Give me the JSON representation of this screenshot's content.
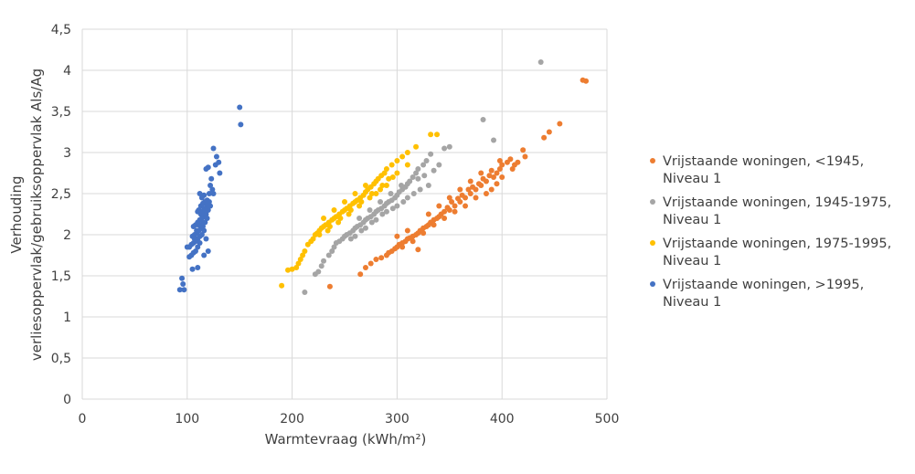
{
  "chart_data": {
    "type": "scatter",
    "title": "",
    "xlabel": "Warmtevraag (kWh/m²)",
    "ylabel_line1": "Verhouding",
    "ylabel_line2": "verliesoppervlak/gebruiksoppervlak Als/Ag",
    "xlim": [
      0,
      500
    ],
    "ylim": [
      0,
      4.5
    ],
    "x_ticks": [
      "0",
      "100",
      "200",
      "300",
      "400",
      "500"
    ],
    "y_ticks": [
      "0",
      "0,5",
      "1",
      "1,5",
      "2",
      "2,5",
      "3",
      "3,5",
      "4",
      "4,5"
    ],
    "grid": "major, both axes",
    "legend_position": "right",
    "series": [
      {
        "name_line1": "Vrijstaande woningen, <1945,",
        "name_line2": "Niveau 1",
        "color": "#ED7D31",
        "points": [
          [
            480,
            3.87
          ],
          [
            477,
            3.88
          ],
          [
            455,
            3.35
          ],
          [
            445,
            3.25
          ],
          [
            440,
            3.18
          ],
          [
            420,
            3.03
          ],
          [
            422,
            2.95
          ],
          [
            415,
            2.88
          ],
          [
            412,
            2.85
          ],
          [
            408,
            2.92
          ],
          [
            405,
            2.88
          ],
          [
            400,
            2.85
          ],
          [
            398,
            2.8
          ],
          [
            395,
            2.75
          ],
          [
            392,
            2.7
          ],
          [
            390,
            2.78
          ],
          [
            388,
            2.72
          ],
          [
            385,
            2.65
          ],
          [
            382,
            2.68
          ],
          [
            380,
            2.6
          ],
          [
            378,
            2.62
          ],
          [
            375,
            2.55
          ],
          [
            372,
            2.58
          ],
          [
            370,
            2.5
          ],
          [
            368,
            2.55
          ],
          [
            365,
            2.45
          ],
          [
            362,
            2.48
          ],
          [
            360,
            2.4
          ],
          [
            358,
            2.44
          ],
          [
            355,
            2.35
          ],
          [
            352,
            2.4
          ],
          [
            350,
            2.3
          ],
          [
            348,
            2.33
          ],
          [
            345,
            2.28
          ],
          [
            342,
            2.25
          ],
          [
            340,
            2.22
          ],
          [
            338,
            2.2
          ],
          [
            335,
            2.18
          ],
          [
            332,
            2.15
          ],
          [
            330,
            2.12
          ],
          [
            328,
            2.1
          ],
          [
            325,
            2.08
          ],
          [
            322,
            2.05
          ],
          [
            320,
            2.02
          ],
          [
            318,
            2.0
          ],
          [
            315,
            1.98
          ],
          [
            312,
            1.96
          ],
          [
            310,
            1.95
          ],
          [
            308,
            1.92
          ],
          [
            305,
            1.9
          ],
          [
            302,
            1.88
          ],
          [
            300,
            1.85
          ],
          [
            298,
            1.83
          ],
          [
            295,
            1.8
          ],
          [
            292,
            1.78
          ],
          [
            290,
            1.75
          ],
          [
            285,
            1.72
          ],
          [
            280,
            1.7
          ],
          [
            275,
            1.65
          ],
          [
            270,
            1.6
          ],
          [
            265,
            1.52
          ],
          [
            320,
            1.82
          ],
          [
            236,
            1.37
          ],
          [
            390,
            2.55
          ],
          [
            395,
            2.62
          ],
          [
            400,
            2.7
          ],
          [
            385,
            2.5
          ],
          [
            375,
            2.45
          ],
          [
            365,
            2.35
          ],
          [
            355,
            2.28
          ],
          [
            345,
            2.2
          ],
          [
            335,
            2.12
          ],
          [
            325,
            2.02
          ],
          [
            315,
            1.92
          ],
          [
            305,
            1.85
          ],
          [
            410,
            2.8
          ],
          [
            370,
            2.65
          ],
          [
            360,
            2.55
          ],
          [
            350,
            2.45
          ],
          [
            340,
            2.35
          ],
          [
            330,
            2.25
          ],
          [
            380,
            2.75
          ],
          [
            398,
            2.9
          ],
          [
            310,
            2.05
          ],
          [
            300,
            1.98
          ]
        ]
      },
      {
        "name_line1": "Vrijstaande woningen, 1945-1975,",
        "name_line2": "Niveau 1",
        "color": "#A5A5A5",
        "points": [
          [
            437,
            4.1
          ],
          [
            382,
            3.4
          ],
          [
            392,
            3.15
          ],
          [
            350,
            3.07
          ],
          [
            345,
            3.05
          ],
          [
            332,
            2.98
          ],
          [
            328,
            2.9
          ],
          [
            325,
            2.85
          ],
          [
            320,
            2.8
          ],
          [
            318,
            2.75
          ],
          [
            315,
            2.7
          ],
          [
            312,
            2.65
          ],
          [
            310,
            2.62
          ],
          [
            308,
            2.58
          ],
          [
            305,
            2.55
          ],
          [
            302,
            2.52
          ],
          [
            300,
            2.48
          ],
          [
            298,
            2.45
          ],
          [
            295,
            2.42
          ],
          [
            292,
            2.4
          ],
          [
            290,
            2.38
          ],
          [
            288,
            2.35
          ],
          [
            285,
            2.32
          ],
          [
            282,
            2.3
          ],
          [
            280,
            2.28
          ],
          [
            278,
            2.25
          ],
          [
            275,
            2.22
          ],
          [
            272,
            2.2
          ],
          [
            270,
            2.18
          ],
          [
            268,
            2.15
          ],
          [
            265,
            2.12
          ],
          [
            262,
            2.1
          ],
          [
            260,
            2.08
          ],
          [
            258,
            2.05
          ],
          [
            255,
            2.02
          ],
          [
            252,
            2.0
          ],
          [
            250,
            1.98
          ],
          [
            248,
            1.95
          ],
          [
            245,
            1.92
          ],
          [
            242,
            1.9
          ],
          [
            240,
            1.85
          ],
          [
            238,
            1.8
          ],
          [
            235,
            1.75
          ],
          [
            230,
            1.68
          ],
          [
            228,
            1.62
          ],
          [
            225,
            1.55
          ],
          [
            222,
            1.52
          ],
          [
            212,
            1.3
          ],
          [
            330,
            2.6
          ],
          [
            322,
            2.55
          ],
          [
            316,
            2.5
          ],
          [
            306,
            2.4
          ],
          [
            296,
            2.32
          ],
          [
            286,
            2.25
          ],
          [
            276,
            2.15
          ],
          [
            266,
            2.05
          ],
          [
            256,
            1.95
          ],
          [
            340,
            2.85
          ],
          [
            335,
            2.78
          ],
          [
            300,
            2.35
          ],
          [
            290,
            2.28
          ],
          [
            280,
            2.18
          ],
          [
            270,
            2.08
          ],
          [
            260,
            1.98
          ],
          [
            310,
            2.45
          ],
          [
            320,
            2.68
          ],
          [
            326,
            2.72
          ],
          [
            304,
            2.6
          ],
          [
            294,
            2.5
          ],
          [
            284,
            2.4
          ],
          [
            274,
            2.3
          ],
          [
            264,
            2.2
          ]
        ]
      },
      {
        "name_line1": "Vrijstaande woningen, 1975-1995,",
        "name_line2": "Niveau 1",
        "color": "#FFC000",
        "points": [
          [
            338,
            3.22
          ],
          [
            332,
            3.22
          ],
          [
            318,
            3.07
          ],
          [
            310,
            3.0
          ],
          [
            305,
            2.95
          ],
          [
            300,
            2.9
          ],
          [
            295,
            2.85
          ],
          [
            290,
            2.8
          ],
          [
            288,
            2.75
          ],
          [
            285,
            2.72
          ],
          [
            282,
            2.68
          ],
          [
            280,
            2.65
          ],
          [
            278,
            2.62
          ],
          [
            275,
            2.58
          ],
          [
            272,
            2.55
          ],
          [
            270,
            2.52
          ],
          [
            268,
            2.48
          ],
          [
            265,
            2.45
          ],
          [
            262,
            2.42
          ],
          [
            260,
            2.4
          ],
          [
            258,
            2.38
          ],
          [
            255,
            2.35
          ],
          [
            252,
            2.32
          ],
          [
            250,
            2.3
          ],
          [
            248,
            2.28
          ],
          [
            245,
            2.25
          ],
          [
            242,
            2.22
          ],
          [
            240,
            2.2
          ],
          [
            238,
            2.18
          ],
          [
            235,
            2.15
          ],
          [
            232,
            2.12
          ],
          [
            230,
            2.1
          ],
          [
            228,
            2.08
          ],
          [
            226,
            2.05
          ],
          [
            224,
            2.02
          ],
          [
            222,
            2.0
          ],
          [
            220,
            1.95
          ],
          [
            218,
            1.92
          ],
          [
            215,
            1.88
          ],
          [
            212,
            1.8
          ],
          [
            210,
            1.75
          ],
          [
            208,
            1.7
          ],
          [
            206,
            1.65
          ],
          [
            204,
            1.6
          ],
          [
            200,
            1.58
          ],
          [
            196,
            1.57
          ],
          [
            190,
            1.38
          ],
          [
            300,
            2.75
          ],
          [
            292,
            2.68
          ],
          [
            286,
            2.6
          ],
          [
            276,
            2.5
          ],
          [
            266,
            2.4
          ],
          [
            256,
            2.3
          ],
          [
            246,
            2.2
          ],
          [
            236,
            2.1
          ],
          [
            226,
            2.0
          ],
          [
            310,
            2.85
          ],
          [
            296,
            2.7
          ],
          [
            284,
            2.55
          ],
          [
            274,
            2.45
          ],
          [
            264,
            2.35
          ],
          [
            254,
            2.25
          ],
          [
            244,
            2.15
          ],
          [
            234,
            2.05
          ],
          [
            270,
            2.6
          ],
          [
            260,
            2.5
          ],
          [
            250,
            2.4
          ],
          [
            240,
            2.3
          ],
          [
            230,
            2.2
          ],
          [
            280,
            2.5
          ],
          [
            290,
            2.6
          ]
        ]
      },
      {
        "name_line1": "Vrijstaande woningen, >1995,",
        "name_line2": "Niveau 1",
        "color": "#4472C4",
        "points": [
          [
            150,
            3.55
          ],
          [
            151,
            3.34
          ],
          [
            125,
            3.05
          ],
          [
            128,
            2.95
          ],
          [
            130,
            2.88
          ],
          [
            127,
            2.85
          ],
          [
            131,
            2.75
          ],
          [
            120,
            2.82
          ],
          [
            118,
            2.8
          ],
          [
            123,
            2.68
          ],
          [
            122,
            2.6
          ],
          [
            124,
            2.55
          ],
          [
            125,
            2.5
          ],
          [
            121,
            2.5
          ],
          [
            116,
            2.48
          ],
          [
            114,
            2.45
          ],
          [
            112,
            2.5
          ],
          [
            119,
            2.42
          ],
          [
            117,
            2.4
          ],
          [
            115,
            2.38
          ],
          [
            113,
            2.35
          ],
          [
            111,
            2.3
          ],
          [
            110,
            2.28
          ],
          [
            122,
            2.35
          ],
          [
            120,
            2.3
          ],
          [
            118,
            2.25
          ],
          [
            116,
            2.22
          ],
          [
            114,
            2.2
          ],
          [
            112,
            2.18
          ],
          [
            110,
            2.15
          ],
          [
            108,
            2.12
          ],
          [
            106,
            2.1
          ],
          [
            119,
            2.2
          ],
          [
            117,
            2.15
          ],
          [
            115,
            2.1
          ],
          [
            113,
            2.08
          ],
          [
            111,
            2.05
          ],
          [
            109,
            2.02
          ],
          [
            107,
            2.0
          ],
          [
            105,
            1.98
          ],
          [
            116,
            2.05
          ],
          [
            114,
            2.0
          ],
          [
            112,
            1.98
          ],
          [
            110,
            1.95
          ],
          [
            108,
            1.92
          ],
          [
            106,
            1.9
          ],
          [
            104,
            1.88
          ],
          [
            102,
            1.85
          ],
          [
            100,
            1.85
          ],
          [
            112,
            1.9
          ],
          [
            110,
            1.85
          ],
          [
            108,
            1.8
          ],
          [
            106,
            1.78
          ],
          [
            104,
            1.75
          ],
          [
            118,
            1.95
          ],
          [
            120,
            1.8
          ],
          [
            116,
            1.75
          ],
          [
            102,
            1.73
          ],
          [
            110,
            1.6
          ],
          [
            105,
            1.58
          ],
          [
            95,
            1.47
          ],
          [
            96,
            1.4
          ],
          [
            93,
            1.33
          ],
          [
            97,
            1.33
          ],
          [
            115,
            2.15
          ],
          [
            113,
            2.25
          ],
          [
            117,
            2.3
          ],
          [
            119,
            2.35
          ],
          [
            121,
            2.4
          ],
          [
            109,
            2.05
          ],
          [
            107,
            1.95
          ],
          [
            111,
            2.12
          ],
          [
            114,
            2.28
          ],
          [
            116,
            2.32
          ]
        ]
      }
    ]
  }
}
